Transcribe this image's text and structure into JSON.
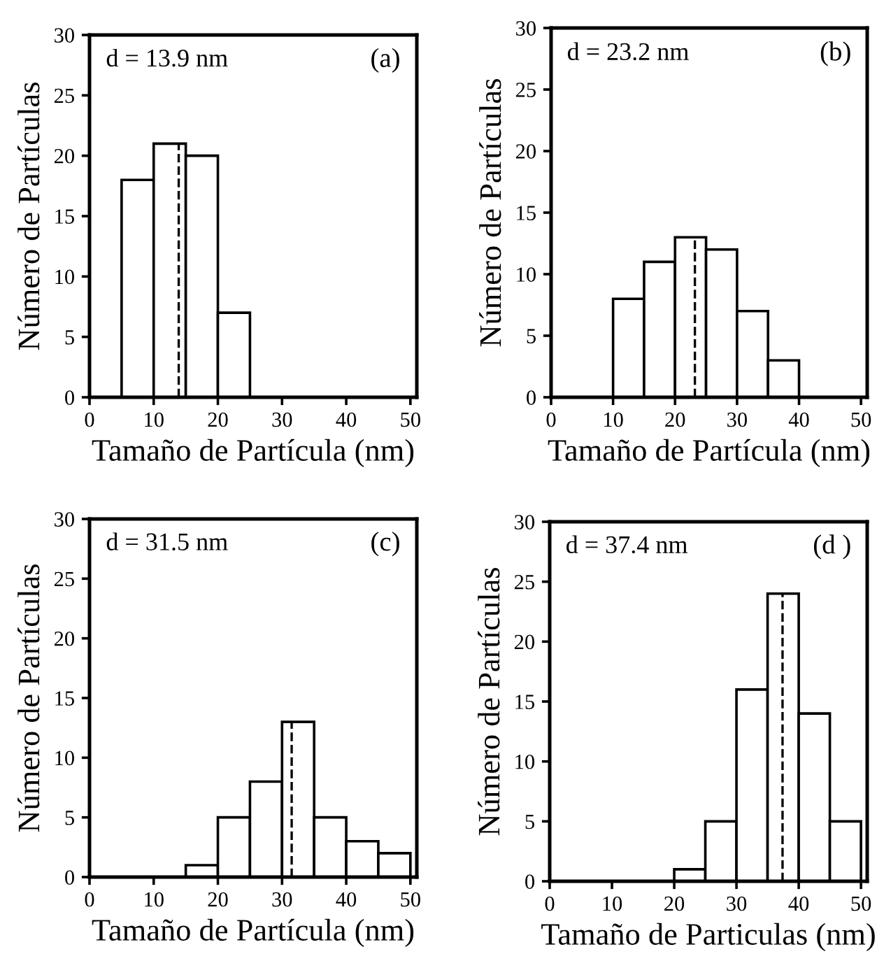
{
  "chart_data": [
    {
      "type": "histogram",
      "xlabel": "Tamaño de Partícula (nm)",
      "ylabel": "Número de Partículas",
      "bins": [
        5,
        10,
        15,
        20,
        25
      ],
      "values": [
        18,
        21,
        20,
        7
      ],
      "xlim": [
        0,
        51
      ],
      "xticks": [
        0,
        10,
        20,
        30,
        40,
        50
      ],
      "ylim": [
        0,
        30
      ],
      "yticks": [
        0,
        5,
        10,
        15,
        20,
        25,
        30
      ],
      "annotations": [
        "d = 13.9 nm",
        "(a)"
      ],
      "ref_lines": [
        {
          "axis": "x",
          "value": 13.9,
          "line_style": "dashed"
        }
      ],
      "grid": false,
      "legend": false
    },
    {
      "type": "histogram",
      "xlabel": "Tamaño de Partícula (nm)",
      "ylabel": "Número de Partículas",
      "bins": [
        10,
        15,
        20,
        25,
        30,
        35,
        40
      ],
      "values": [
        8,
        11,
        13,
        12,
        7,
        3
      ],
      "xlim": [
        0,
        51
      ],
      "xticks": [
        0,
        10,
        20,
        30,
        40,
        50
      ],
      "ylim": [
        0,
        30
      ],
      "yticks": [
        0,
        5,
        10,
        15,
        20,
        25,
        30
      ],
      "annotations": [
        "d = 23.2 nm",
        "(b)"
      ],
      "ref_lines": [
        {
          "axis": "x",
          "value": 23.2,
          "line_style": "dashed"
        }
      ],
      "grid": false,
      "legend": false
    },
    {
      "type": "histogram",
      "xlabel": "Tamaño de Partícula (nm)",
      "ylabel": "Número de Partículas",
      "bins": [
        15,
        20,
        25,
        30,
        35,
        40,
        45,
        50
      ],
      "values": [
        1,
        5,
        8,
        13,
        5,
        3,
        2
      ],
      "xlim": [
        0,
        51
      ],
      "xticks": [
        0,
        10,
        20,
        30,
        40,
        50
      ],
      "ylim": [
        0,
        30
      ],
      "yticks": [
        0,
        5,
        10,
        15,
        20,
        25,
        30
      ],
      "annotations": [
        "d = 31.5 nm",
        "(c)"
      ],
      "ref_lines": [
        {
          "axis": "x",
          "value": 31.5,
          "line_style": "dashed"
        }
      ],
      "grid": false,
      "legend": false
    },
    {
      "type": "histogram",
      "xlabel": "Tamaño de Particulas (nm)",
      "ylabel": "Número de Partículas",
      "bins": [
        20,
        25,
        30,
        35,
        40,
        45,
        50
      ],
      "values": [
        1,
        5,
        16,
        24,
        14,
        5
      ],
      "xlim": [
        0,
        51
      ],
      "xticks": [
        0,
        10,
        20,
        30,
        40,
        50
      ],
      "ylim": [
        0,
        30
      ],
      "yticks": [
        0,
        5,
        10,
        15,
        20,
        25,
        30
      ],
      "annotations": [
        "d = 37.4 nm",
        "(d )"
      ],
      "ref_lines": [
        {
          "axis": "x",
          "value": 37.4,
          "line_style": "dashed"
        }
      ],
      "grid": false,
      "legend": false
    }
  ]
}
